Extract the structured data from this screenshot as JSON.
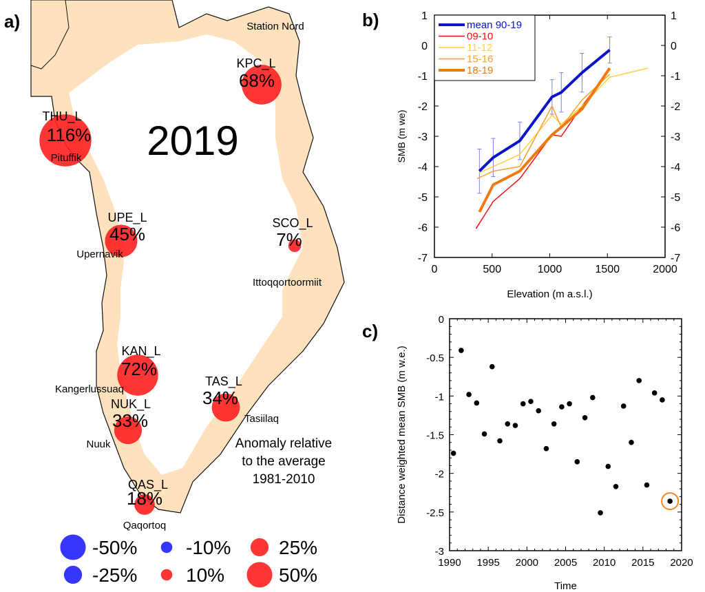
{
  "panel_labels": {
    "a": "a)",
    "b": "b)",
    "c": "c)"
  },
  "chart_data": [
    {
      "id": "a",
      "type": "bubble-map",
      "title": "2019",
      "annotation": [
        "Anomaly relative",
        "to the average",
        "1981-2010"
      ],
      "land_color": "#fde2bd",
      "positive_color": "#ff2020",
      "negative_color": "#2020ff",
      "stations": [
        {
          "code": "KPC_L",
          "value_pct": 68,
          "label": "68%",
          "place": "Station Nord"
        },
        {
          "code": "THU_L",
          "value_pct": 116,
          "label": "116%",
          "place": "Pituffik"
        },
        {
          "code": "UPE_L",
          "value_pct": 45,
          "label": "45%",
          "place": "Upernavik"
        },
        {
          "code": "SCO_L",
          "value_pct": 7,
          "label": "7%",
          "place": "Ittoqqortoormiit"
        },
        {
          "code": "KAN_L",
          "value_pct": 72,
          "label": "72%",
          "place": "Kangerlussuaq"
        },
        {
          "code": "TAS_L",
          "value_pct": 34,
          "label": "34%",
          "place": "Tasiilaq"
        },
        {
          "code": "NUK_L",
          "value_pct": 33,
          "label": "33%",
          "place": "Nuuk"
        },
        {
          "code": "QAS_L",
          "value_pct": 18,
          "label": "18%",
          "place": "Qaqortoq"
        }
      ],
      "legend": [
        {
          "value_pct": -50,
          "label": "-50%"
        },
        {
          "value_pct": -10,
          "label": "-10%"
        },
        {
          "value_pct": 25,
          "label": "25%"
        },
        {
          "value_pct": -25,
          "label": "-25%"
        },
        {
          "value_pct": 10,
          "label": "10%"
        },
        {
          "value_pct": 50,
          "label": "50%"
        }
      ]
    },
    {
      "id": "b",
      "type": "line",
      "xlabel": "Elevation (m a.s.l.)",
      "ylabel": "SMB (m we)",
      "xlim": [
        0,
        2000
      ],
      "ylim": [
        -7,
        1
      ],
      "xticks": [
        0,
        500,
        1000,
        1500,
        2000
      ],
      "yticks": [
        -7,
        -6,
        -5,
        -4,
        -3,
        -2,
        -1,
        0,
        1
      ],
      "legend_position": "top-left",
      "series": [
        {
          "name": "mean 90-19",
          "color": "#0a14c8",
          "width": 4,
          "x": [
            390,
            510,
            740,
            1020,
            1100,
            1280,
            1520
          ],
          "y": [
            -4.15,
            -3.7,
            -3.15,
            -1.7,
            -1.55,
            -0.9,
            -0.15
          ],
          "err": [
            0.73,
            0.63,
            0.62,
            0.57,
            0.65,
            0.64,
            0.43
          ]
        },
        {
          "name": "09-10",
          "color": "#ee1111",
          "width": 1.5,
          "x": [
            360,
            510,
            740,
            1020,
            1100,
            1280,
            1520
          ],
          "y": [
            -6.05,
            -5.15,
            -4.4,
            -2.95,
            -3.0,
            -2.0,
            -0.8
          ]
        },
        {
          "name": "11-12",
          "color": "#ffd040",
          "width": 1.5,
          "x": [
            390,
            510,
            740,
            1020,
            1100,
            1280,
            1520,
            1850
          ],
          "y": [
            -4.2,
            -4.0,
            -3.6,
            -2.3,
            -2.6,
            -2.0,
            -1.05,
            -0.75
          ]
        },
        {
          "name": "15-16",
          "color": "#f7a030",
          "width": 1.5,
          "x": [
            370,
            510,
            740,
            1020,
            1100,
            1280,
            1520
          ],
          "y": [
            -4.4,
            -4.15,
            -4.0,
            -2.0,
            -2.7,
            -1.8,
            -0.95
          ]
        },
        {
          "name": "18-19",
          "color": "#f07a10",
          "width": 4,
          "x": [
            390,
            510,
            740,
            1020,
            1100,
            1280,
            1520
          ],
          "y": [
            -5.5,
            -4.6,
            -4.15,
            -2.95,
            -2.7,
            -2.1,
            -0.75
          ]
        }
      ]
    },
    {
      "id": "c",
      "type": "scatter",
      "xlabel": "Time",
      "ylabel": "Distance weighted mean SMB (m w.e.)",
      "xlim": [
        1990,
        2020
      ],
      "ylim": [
        -3,
        0
      ],
      "xticks": [
        1990,
        1995,
        2000,
        2005,
        2010,
        2015,
        2020
      ],
      "yticks": [
        -3,
        -2.5,
        -2,
        -1.5,
        -1,
        -0.5,
        0
      ],
      "highlight_color": "#f08a20",
      "highlight_year": 2018.5,
      "points": [
        {
          "x": 1990.5,
          "y": -1.74
        },
        {
          "x": 1991.5,
          "y": -0.41
        },
        {
          "x": 1992.5,
          "y": -0.98
        },
        {
          "x": 1993.5,
          "y": -1.09
        },
        {
          "x": 1994.5,
          "y": -1.49
        },
        {
          "x": 1995.5,
          "y": -0.62
        },
        {
          "x": 1996.5,
          "y": -1.58
        },
        {
          "x": 1997.5,
          "y": -1.36
        },
        {
          "x": 1998.5,
          "y": -1.38
        },
        {
          "x": 1999.5,
          "y": -1.1
        },
        {
          "x": 2000.5,
          "y": -1.07
        },
        {
          "x": 2001.5,
          "y": -1.19
        },
        {
          "x": 2002.5,
          "y": -1.68
        },
        {
          "x": 2003.5,
          "y": -1.36
        },
        {
          "x": 2004.5,
          "y": -1.14
        },
        {
          "x": 2005.5,
          "y": -1.1
        },
        {
          "x": 2006.5,
          "y": -1.85
        },
        {
          "x": 2007.5,
          "y": -1.28
        },
        {
          "x": 2008.5,
          "y": -1.02
        },
        {
          "x": 2009.5,
          "y": -2.51
        },
        {
          "x": 2010.5,
          "y": -1.91
        },
        {
          "x": 2011.5,
          "y": -2.17
        },
        {
          "x": 2012.5,
          "y": -1.13
        },
        {
          "x": 2013.5,
          "y": -1.6
        },
        {
          "x": 2014.5,
          "y": -0.8
        },
        {
          "x": 2015.5,
          "y": -2.15
        },
        {
          "x": 2016.5,
          "y": -0.96
        },
        {
          "x": 2017.5,
          "y": -1.05
        },
        {
          "x": 2018.5,
          "y": -2.36
        }
      ]
    }
  ]
}
